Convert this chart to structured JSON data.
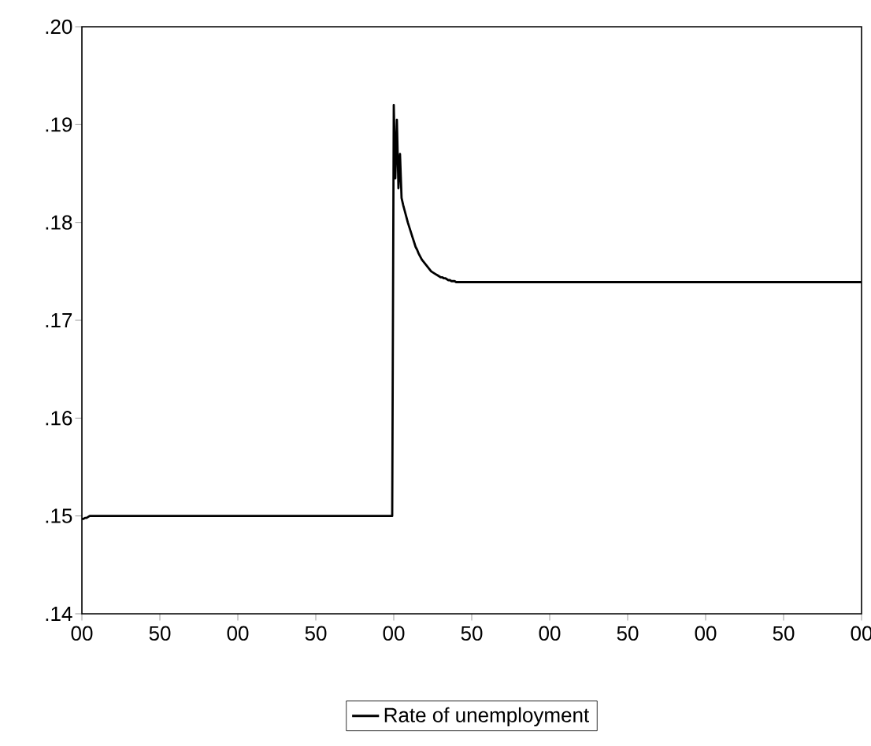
{
  "chart_data": {
    "type": "line",
    "legend": "bottom",
    "grid": false,
    "marker": "none",
    "line_style": "solid",
    "ylim": [
      0.14,
      0.2
    ],
    "yticks": [
      {
        "value": 0.14,
        "label": ".14"
      },
      {
        "value": 0.15,
        "label": ".15"
      },
      {
        "value": 0.16,
        "label": ".16"
      },
      {
        "value": 0.17,
        "label": ".17"
      },
      {
        "value": 0.18,
        "label": ".18"
      },
      {
        "value": 0.19,
        "label": ".19"
      },
      {
        "value": 0.2,
        "label": ".20"
      }
    ],
    "categories": [
      "00",
      null,
      null,
      null,
      null,
      null,
      null,
      null,
      null,
      null,
      null,
      null,
      null,
      null,
      null,
      null,
      null,
      null,
      null,
      null,
      null,
      null,
      null,
      null,
      null,
      null,
      null,
      null,
      null,
      null,
      null,
      null,
      null,
      null,
      null,
      null,
      null,
      null,
      null,
      null,
      null,
      null,
      null,
      null,
      null,
      null,
      null,
      null,
      null,
      null,
      "50",
      null,
      null,
      null,
      null,
      null,
      null,
      null,
      null,
      null,
      null,
      null,
      null,
      null,
      null,
      null,
      null,
      null,
      null,
      null,
      null,
      null,
      null,
      null,
      null,
      null,
      null,
      null,
      null,
      null,
      null,
      null,
      null,
      null,
      null,
      null,
      null,
      null,
      null,
      null,
      null,
      null,
      null,
      null,
      null,
      null,
      null,
      null,
      null,
      null,
      "00",
      null,
      null,
      null,
      null,
      null,
      null,
      null,
      null,
      null,
      null,
      null,
      null,
      null,
      null,
      null,
      null,
      null,
      null,
      null,
      null,
      null,
      null,
      null,
      null,
      null,
      null,
      null,
      null,
      null,
      null,
      null,
      null,
      null,
      null,
      null,
      null,
      null,
      null,
      null,
      null,
      null,
      null,
      null,
      null,
      null,
      null,
      null,
      null,
      null,
      "50",
      null,
      null,
      null,
      null,
      null,
      null,
      null,
      null,
      null,
      null,
      null,
      null,
      null,
      null,
      null,
      null,
      null,
      null,
      null,
      null,
      null,
      null,
      null,
      null,
      null,
      null,
      null,
      null,
      null,
      null,
      null,
      null,
      null,
      null,
      null,
      null,
      null,
      null,
      null,
      null,
      null,
      null,
      null,
      null,
      null,
      null,
      null,
      null,
      null,
      "00",
      null,
      null,
      null,
      null,
      null,
      null,
      null,
      null,
      null,
      null,
      null,
      null,
      null,
      null,
      null,
      null,
      null,
      null,
      null,
      null,
      null,
      null,
      null,
      null,
      null,
      null,
      null,
      null,
      null,
      null,
      null,
      null,
      null,
      null,
      null,
      null,
      null,
      null,
      null,
      null,
      null,
      null,
      null,
      null,
      null,
      null,
      null,
      null,
      null,
      "50",
      null,
      null,
      null,
      null,
      null,
      null,
      null,
      null,
      null,
      null,
      null,
      null,
      null,
      null,
      null,
      null,
      null,
      null,
      null,
      null,
      null,
      null,
      null,
      null,
      null,
      null,
      null,
      null,
      null,
      null,
      null,
      null,
      null,
      null,
      null,
      null,
      null,
      null,
      null,
      null,
      null,
      null,
      null,
      null,
      null,
      null,
      null,
      null,
      null,
      "00",
      null,
      null,
      null,
      null,
      null,
      null,
      null,
      null,
      null,
      null,
      null,
      null,
      null,
      null,
      null,
      null,
      null,
      null,
      null,
      null,
      null,
      null,
      null,
      null,
      null,
      null,
      null,
      null,
      null,
      null,
      null,
      null,
      null,
      null,
      null,
      null,
      null,
      null,
      null,
      null,
      null,
      null,
      null,
      null,
      null,
      null,
      null,
      null,
      null,
      "50",
      null,
      null,
      null,
      null,
      null,
      null,
      null,
      null,
      null,
      null,
      null,
      null,
      null,
      null,
      null,
      null,
      null,
      null,
      null,
      null,
      null,
      null,
      null,
      null,
      null,
      null,
      null,
      null,
      null,
      null,
      null,
      null,
      null,
      null,
      null,
      null,
      null,
      null,
      null,
      null,
      null,
      null,
      null,
      null,
      null,
      null,
      null,
      null,
      null,
      "00",
      null,
      null,
      null,
      null,
      null,
      null,
      null,
      null,
      null,
      null,
      null,
      null,
      null,
      null,
      null,
      null,
      null,
      null,
      null,
      null,
      null,
      null,
      null,
      null,
      null,
      null,
      null,
      null,
      null,
      null,
      null,
      null,
      null,
      null,
      null,
      null,
      null,
      null,
      null,
      null,
      null,
      null,
      null,
      null,
      null,
      null,
      null,
      null,
      null,
      "50",
      null,
      null,
      null,
      null,
      null,
      null,
      null,
      null,
      null,
      null,
      null,
      null,
      null,
      null,
      null,
      null,
      null,
      null,
      null,
      null,
      null,
      null,
      null,
      null,
      null,
      null,
      null,
      null,
      null,
      null,
      null,
      null,
      null,
      null,
      null,
      null,
      null,
      null,
      null,
      null,
      null,
      null,
      null,
      null,
      null,
      null,
      null,
      null,
      null,
      "00"
    ],
    "series": [
      {
        "name": "Rate of unemployment",
        "color": "#000000",
        "values": [
          0.1497,
          0.1497,
          0.1498,
          0.1498,
          0.1499,
          0.15,
          0.15,
          0.15,
          0.15,
          0.15,
          0.15,
          0.15,
          0.15,
          0.15,
          0.15,
          0.15,
          0.15,
          0.15,
          0.15,
          0.15,
          0.15,
          0.15,
          0.15,
          0.15,
          0.15,
          0.15,
          0.15,
          0.15,
          0.15,
          0.15,
          0.15,
          0.15,
          0.15,
          0.15,
          0.15,
          0.15,
          0.15,
          0.15,
          0.15,
          0.15,
          0.15,
          0.15,
          0.15,
          0.15,
          0.15,
          0.15,
          0.15,
          0.15,
          0.15,
          0.15,
          0.15,
          0.15,
          0.15,
          0.15,
          0.15,
          0.15,
          0.15,
          0.15,
          0.15,
          0.15,
          0.15,
          0.15,
          0.15,
          0.15,
          0.15,
          0.15,
          0.15,
          0.15,
          0.15,
          0.15,
          0.15,
          0.15,
          0.15,
          0.15,
          0.15,
          0.15,
          0.15,
          0.15,
          0.15,
          0.15,
          0.15,
          0.15,
          0.15,
          0.15,
          0.15,
          0.15,
          0.15,
          0.15,
          0.15,
          0.15,
          0.15,
          0.15,
          0.15,
          0.15,
          0.15,
          0.15,
          0.15,
          0.15,
          0.15,
          0.15,
          0.15,
          0.15,
          0.15,
          0.15,
          0.15,
          0.15,
          0.15,
          0.15,
          0.15,
          0.15,
          0.15,
          0.15,
          0.15,
          0.15,
          0.15,
          0.15,
          0.15,
          0.15,
          0.15,
          0.15,
          0.15,
          0.15,
          0.15,
          0.15,
          0.15,
          0.15,
          0.15,
          0.15,
          0.15,
          0.15,
          0.15,
          0.15,
          0.15,
          0.15,
          0.15,
          0.15,
          0.15,
          0.15,
          0.15,
          0.15,
          0.15,
          0.15,
          0.15,
          0.15,
          0.15,
          0.15,
          0.15,
          0.15,
          0.15,
          0.15,
          0.15,
          0.15,
          0.15,
          0.15,
          0.15,
          0.15,
          0.15,
          0.15,
          0.15,
          0.15,
          0.15,
          0.15,
          0.15,
          0.15,
          0.15,
          0.15,
          0.15,
          0.15,
          0.15,
          0.15,
          0.15,
          0.15,
          0.15,
          0.15,
          0.15,
          0.15,
          0.15,
          0.15,
          0.15,
          0.15,
          0.15,
          0.15,
          0.15,
          0.15,
          0.15,
          0.15,
          0.15,
          0.15,
          0.15,
          0.15,
          0.15,
          0.15,
          0.15,
          0.15,
          0.15,
          0.15,
          0.15,
          0.15,
          0.15,
          0.15,
          0.192,
          0.1845,
          0.1905,
          0.1835,
          0.187,
          0.1825,
          0.1818,
          0.1812,
          0.1806,
          0.18,
          0.1795,
          0.179,
          0.1785,
          0.178,
          0.1775,
          0.1772,
          0.1768,
          0.1765,
          0.1762,
          0.176,
          0.1758,
          0.1756,
          0.1754,
          0.1752,
          0.175,
          0.1749,
          0.1748,
          0.1747,
          0.1746,
          0.1745,
          0.1744,
          0.1744,
          0.1743,
          0.1743,
          0.1742,
          0.1741,
          0.1741,
          0.174,
          0.174,
          0.174,
          0.1739,
          0.1739,
          0.1739,
          0.1739,
          0.1739,
          0.1739,
          0.1739,
          0.1739,
          0.1739,
          0.1739,
          0.1739,
          0.1739,
          0.1739,
          0.1739,
          0.1739,
          0.1739,
          0.1739,
          0.1739,
          0.1739,
          0.1739,
          0.1739,
          0.1739,
          0.1739,
          0.1739,
          0.1739,
          0.1739,
          0.1739,
          0.1739,
          0.1739,
          0.1739,
          0.1739,
          0.1739,
          0.1739,
          0.1739,
          0.1739,
          0.1739,
          0.1739,
          0.1739,
          0.1739,
          0.1739,
          0.1739,
          0.1739,
          0.1739,
          0.1739,
          0.1739,
          0.1739,
          0.1739,
          0.1739,
          0.1739,
          0.1739,
          0.1739,
          0.1739,
          0.1739,
          0.1739,
          0.1739,
          0.1739,
          0.1739,
          0.1739,
          0.1739,
          0.1739,
          0.1739,
          0.1739,
          0.1739,
          0.1739,
          0.1739,
          0.1739,
          0.1739,
          0.1739,
          0.1739,
          0.1739,
          0.1739,
          0.1739,
          0.1739,
          0.1739,
          0.1739,
          0.1739,
          0.1739,
          0.1739,
          0.1739,
          0.1739,
          0.1739,
          0.1739,
          0.1739,
          0.1739,
          0.1739,
          0.1739,
          0.1739,
          0.1739,
          0.1739,
          0.1739,
          0.1739,
          0.1739,
          0.1739,
          0.1739,
          0.1739,
          0.1739,
          0.1739,
          0.1739,
          0.1739,
          0.1739,
          0.1739,
          0.1739,
          0.1739,
          0.1739,
          0.1739,
          0.1739,
          0.1739,
          0.1739,
          0.1739,
          0.1739,
          0.1739,
          0.1739,
          0.1739,
          0.1739,
          0.1739,
          0.1739,
          0.1739,
          0.1739,
          0.1739,
          0.1739,
          0.1739,
          0.1739,
          0.1739,
          0.1739,
          0.1739,
          0.1739,
          0.1739,
          0.1739,
          0.1739,
          0.1739,
          0.1739,
          0.1739,
          0.1739,
          0.1739,
          0.1739,
          0.1739,
          0.1739,
          0.1739,
          0.1739,
          0.1739,
          0.1739,
          0.1739,
          0.1739,
          0.1739,
          0.1739,
          0.1739,
          0.1739,
          0.1739,
          0.1739,
          0.1739,
          0.1739,
          0.1739,
          0.1739,
          0.1739,
          0.1739,
          0.1739,
          0.1739,
          0.1739,
          0.1739,
          0.1739,
          0.1739,
          0.1739,
          0.1739,
          0.1739,
          0.1739,
          0.1739,
          0.1739,
          0.1739,
          0.1739,
          0.1739,
          0.1739,
          0.1739,
          0.1739,
          0.1739,
          0.1739,
          0.1739,
          0.1739,
          0.1739,
          0.1739,
          0.1739,
          0.1739,
          0.1739,
          0.1739,
          0.1739,
          0.1739,
          0.1739,
          0.1739,
          0.1739,
          0.1739,
          0.1739,
          0.1739,
          0.1739,
          0.1739,
          0.1739,
          0.1739,
          0.1739,
          0.1739,
          0.1739,
          0.1739,
          0.1739,
          0.1739,
          0.1739,
          0.1739,
          0.1739,
          0.1739,
          0.1739,
          0.1739,
          0.1739,
          0.1739,
          0.1739,
          0.1739,
          0.1739,
          0.1739,
          0.1739,
          0.1739,
          0.1739,
          0.1739,
          0.1739,
          0.1739,
          0.1739,
          0.1739,
          0.1739,
          0.1739,
          0.1739,
          0.1739,
          0.1739,
          0.1739,
          0.1739,
          0.1739,
          0.1739,
          0.1739,
          0.1739,
          0.1739,
          0.1739,
          0.1739,
          0.1739,
          0.1739,
          0.1739,
          0.1739,
          0.1739,
          0.1739,
          0.1739,
          0.1739,
          0.1739,
          0.1739,
          0.1739,
          0.1739,
          0.1739,
          0.1739,
          0.1739,
          0.1739,
          0.1739,
          0.1739,
          0.1739,
          0.1739,
          0.1739,
          0.1739,
          0.1739,
          0.1739,
          0.1739,
          0.1739
        ]
      }
    ]
  }
}
